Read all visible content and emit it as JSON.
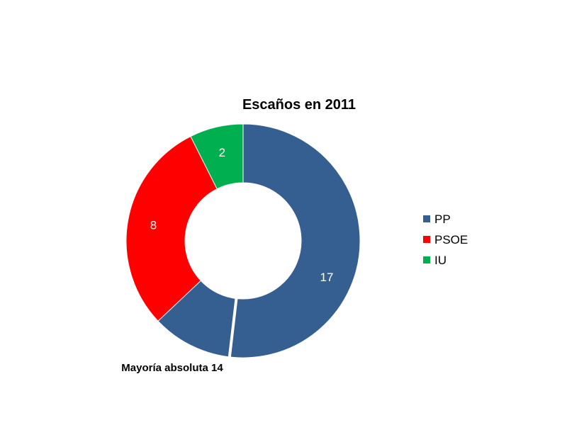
{
  "chart_data": {
    "type": "pie",
    "title": "Escaños en 2011",
    "categories": [
      "PP",
      "PSOE",
      "IU"
    ],
    "values": [
      17,
      8,
      2
    ],
    "colors": [
      "#365f91",
      "#ff0000",
      "#00b050"
    ],
    "legend_position": "right",
    "annotations": [
      {
        "text": "Mayoría absoluta 14",
        "threshold": 14
      }
    ]
  }
}
